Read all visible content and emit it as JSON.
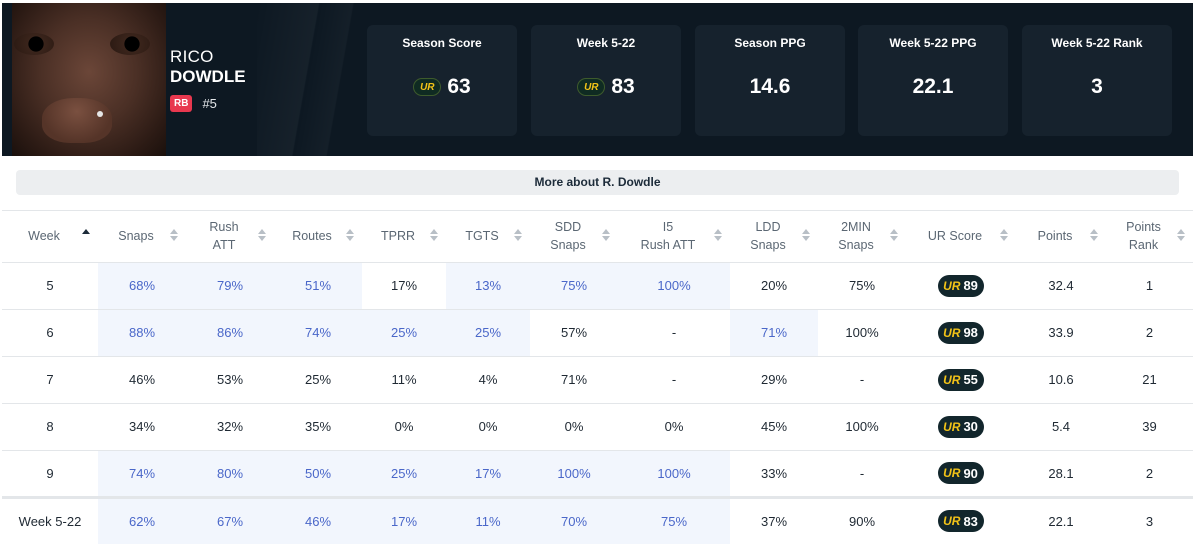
{
  "player": {
    "first_name": "RICO",
    "last_name": "DOWDLE",
    "position": "RB",
    "jersey": "#5"
  },
  "stat_cards": [
    {
      "label": "Season Score",
      "value": "63",
      "logo": true
    },
    {
      "label": "Week 5-22",
      "value": "83",
      "logo": true
    },
    {
      "label": "Season PPG",
      "value": "14.6",
      "logo": false
    },
    {
      "label": "Week 5-22 PPG",
      "value": "22.1",
      "logo": false
    },
    {
      "label": "Week 5-22 Rank",
      "value": "3",
      "logo": false
    }
  ],
  "ur_logo_text": "UR",
  "more_about": "More about R. Dowdle",
  "columns": [
    {
      "line1": "Week",
      "line2": ""
    },
    {
      "line1": "Snaps",
      "line2": ""
    },
    {
      "line1": "Rush",
      "line2": "ATT"
    },
    {
      "line1": "Routes",
      "line2": ""
    },
    {
      "line1": "TPRR",
      "line2": ""
    },
    {
      "line1": "TGTS",
      "line2": ""
    },
    {
      "line1": "SDD",
      "line2": "Snaps"
    },
    {
      "line1": "I5",
      "line2": "Rush ATT"
    },
    {
      "line1": "LDD",
      "line2": "Snaps"
    },
    {
      "line1": "2MIN",
      "line2": "Snaps"
    },
    {
      "line1": "UR Score",
      "line2": ""
    },
    {
      "line1": "Points",
      "line2": ""
    },
    {
      "line1": "Points",
      "line2": "Rank"
    }
  ],
  "rows": [
    {
      "week": "5",
      "snaps": "68%",
      "rush_att": "79%",
      "routes": "51%",
      "tprr": "17%",
      "tgts": "13%",
      "sdd": "75%",
      "i5": "100%",
      "ldd": "20%",
      "two_min": "75%",
      "ur": "89",
      "points": "32.4",
      "rank": "1",
      "hl": [
        1,
        2,
        3,
        5,
        6,
        7
      ]
    },
    {
      "week": "6",
      "snaps": "88%",
      "rush_att": "86%",
      "routes": "74%",
      "tprr": "25%",
      "tgts": "25%",
      "sdd": "57%",
      "i5": "-",
      "ldd": "71%",
      "two_min": "100%",
      "ur": "98",
      "points": "33.9",
      "rank": "2",
      "hl": [
        1,
        2,
        3,
        4,
        5,
        8
      ]
    },
    {
      "week": "7",
      "snaps": "46%",
      "rush_att": "53%",
      "routes": "25%",
      "tprr": "11%",
      "tgts": "4%",
      "sdd": "71%",
      "i5": "-",
      "ldd": "29%",
      "two_min": "-",
      "ur": "55",
      "points": "10.6",
      "rank": "21",
      "hl": []
    },
    {
      "week": "8",
      "snaps": "34%",
      "rush_att": "32%",
      "routes": "35%",
      "tprr": "0%",
      "tgts": "0%",
      "sdd": "0%",
      "i5": "0%",
      "ldd": "45%",
      "two_min": "100%",
      "ur": "30",
      "points": "5.4",
      "rank": "39",
      "hl": []
    },
    {
      "week": "9",
      "snaps": "74%",
      "rush_att": "80%",
      "routes": "50%",
      "tprr": "25%",
      "tgts": "17%",
      "sdd": "100%",
      "i5": "100%",
      "ldd": "33%",
      "two_min": "-",
      "ur": "90",
      "points": "28.1",
      "rank": "2",
      "hl": [
        1,
        2,
        3,
        4,
        5,
        6,
        7
      ]
    }
  ],
  "total": {
    "week": "Week 5-22",
    "snaps": "62%",
    "rush_att": "67%",
    "routes": "46%",
    "tprr": "17%",
    "tgts": "11%",
    "sdd": "70%",
    "i5": "75%",
    "ldd": "37%",
    "two_min": "90%",
    "ur": "83",
    "points": "22.1",
    "rank": "3",
    "hl": [
      1,
      2,
      3,
      4,
      5,
      6,
      7
    ]
  },
  "colors": {
    "highlight_bg": "#f2f6fd",
    "highlight_text": "#4a67c9",
    "header_bg": "#0d1822",
    "card_bg": "#16222d",
    "logo_yellow": "#f2c318",
    "badge_red": "#e8384f"
  }
}
